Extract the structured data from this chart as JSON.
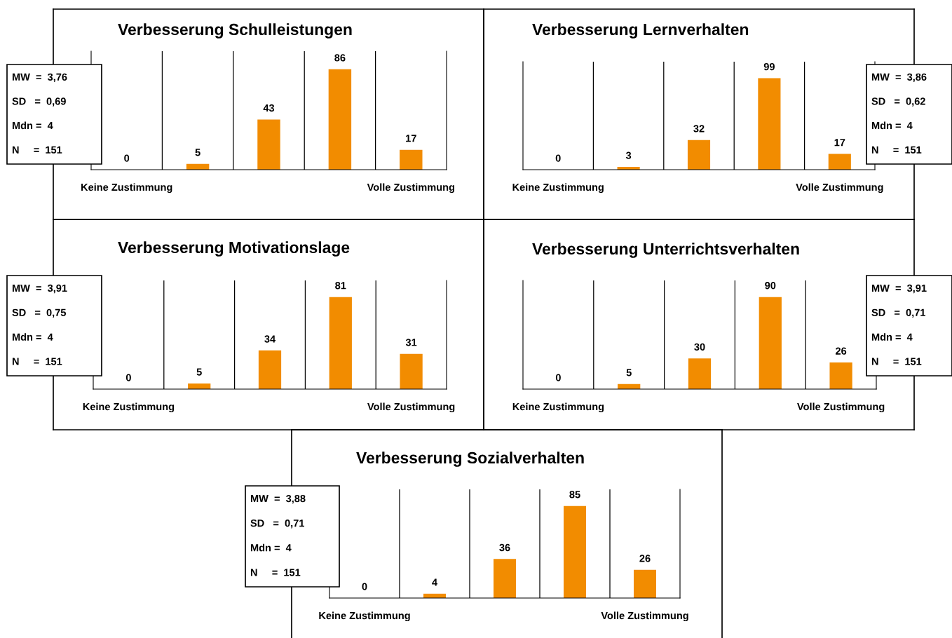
{
  "chart_data": [
    {
      "type": "bar",
      "title": "Verbesserung Schulleistungen",
      "categories": [
        "Keine Zustimmung",
        null,
        null,
        null,
        "Volle Zustimmung"
      ],
      "values": [
        0,
        5,
        43,
        86,
        17
      ],
      "color": "#f28c00",
      "data_labels": true,
      "annotations": [
        "MW  =  3,76",
        "SD   =  0,69",
        "Mdn =  4",
        "N     =  151"
      ]
    },
    {
      "type": "bar",
      "title": "Verbesserung Lernverhalten",
      "categories": [
        "Keine Zustimmung",
        null,
        null,
        null,
        "Volle Zustimmung"
      ],
      "values": [
        0,
        3,
        32,
        99,
        17
      ],
      "color": "#f28c00",
      "data_labels": true,
      "annotations": [
        "MW  =  3,86",
        "SD   =  0,62",
        "Mdn =  4",
        "N     =  151"
      ]
    },
    {
      "type": "bar",
      "title": "Verbesserung Motivationslage",
      "categories": [
        "Keine Zustimmung",
        null,
        null,
        null,
        "Volle Zustimmung"
      ],
      "values": [
        0,
        5,
        34,
        81,
        31
      ],
      "color": "#f28c00",
      "data_labels": true,
      "annotations": [
        "MW  =  3,91",
        "SD   =  0,75",
        "Mdn =  4",
        "N     =  151"
      ]
    },
    {
      "type": "bar",
      "title": "Verbesserung Unterrichtsverhalten",
      "categories": [
        "Keine Zustimmung",
        null,
        null,
        null,
        "Volle Zustimmung"
      ],
      "values": [
        0,
        5,
        30,
        90,
        26
      ],
      "color": "#f28c00",
      "data_labels": true,
      "annotations": [
        "MW  =  3,91",
        "SD   =  0,71",
        "Mdn =  4",
        "N     =  151"
      ]
    },
    {
      "type": "bar",
      "title": "Verbesserung Sozialverhalten",
      "categories": [
        "Keine Zustimmung",
        null,
        null,
        null,
        "Volle Zustimmung"
      ],
      "values": [
        0,
        4,
        36,
        85,
        26
      ],
      "color": "#f28c00",
      "data_labels": true,
      "annotations": [
        "MW  =  3,88",
        "SD   =  0,71",
        "Mdn =  4",
        "N     =  151"
      ]
    }
  ]
}
